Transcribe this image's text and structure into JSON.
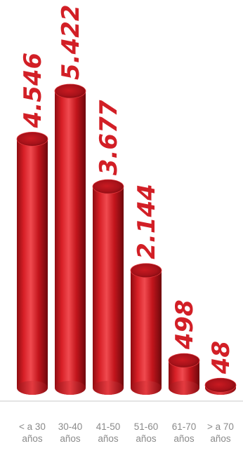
{
  "chart_data": {
    "type": "bar",
    "categories": [
      [
        "< a 30",
        "años"
      ],
      [
        "30-40",
        "años"
      ],
      [
        "41-50",
        "años"
      ],
      [
        "51-60",
        "años"
      ],
      [
        "61-70",
        "años"
      ],
      [
        "> a 70",
        "años"
      ]
    ],
    "values": [
      4546,
      5422,
      3677,
      2144,
      498,
      48
    ],
    "value_labels": [
      "4.546",
      "5.422",
      "3.677",
      "2.144",
      "498",
      "48"
    ],
    "title": "",
    "xlabel": "",
    "ylabel": "",
    "ylim": [
      0,
      5422
    ],
    "grid": false,
    "legend": "none",
    "colors": {
      "bar": "#c3151c",
      "bar_highlight": "#ff6a6a",
      "bar_shadow": "#7a0a0e",
      "label": "#d21f26",
      "tick": "#8a8a8a",
      "axis": "#c8c8c8"
    }
  }
}
